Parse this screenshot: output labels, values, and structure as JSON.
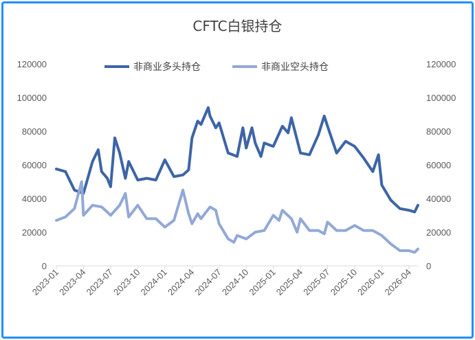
{
  "chart_data": {
    "type": "line",
    "title": "CFTC白银持仓",
    "y_left": {
      "ylim": [
        0,
        120000
      ],
      "ticks": [
        "0",
        "20000",
        "40000",
        "60000",
        "80000",
        "100000",
        "120000"
      ]
    },
    "y_right": {
      "ylim": [
        0,
        120000
      ],
      "ticks": [
        "0",
        "20000",
        "40000",
        "60000",
        "80000",
        "100000",
        "120000"
      ]
    },
    "x_ticks": [
      "2023-01",
      "2023-04",
      "2023-07",
      "2023-10",
      "2024-01",
      "2024-04",
      "2024-07",
      "2024-10",
      "2025-01",
      "2025-04",
      "2025-07",
      "2025-10",
      "2026-01",
      "2026-04"
    ],
    "x_range": [
      "2023-01",
      "2026-05"
    ],
    "legend": {
      "position": "top"
    },
    "grid": false,
    "series": [
      {
        "name": "非商业多头持仓",
        "color": "#3d65a6",
        "points": [
          [
            "2023-01",
            57500
          ],
          [
            "2023-02",
            56000
          ],
          [
            "2023-03",
            45000
          ],
          [
            "2023-04",
            43000
          ],
          [
            "2023-05",
            62000
          ],
          [
            "2023-05-20",
            69000
          ],
          [
            "2023-06",
            56000
          ],
          [
            "2023-06-20",
            52000
          ],
          [
            "2023-07",
            47000
          ],
          [
            "2023-07-15",
            76000
          ],
          [
            "2023-08",
            67000
          ],
          [
            "2023-08-20",
            52000
          ],
          [
            "2023-09",
            62000
          ],
          [
            "2023-10",
            51000
          ],
          [
            "2023-11",
            52000
          ],
          [
            "2023-12",
            51000
          ],
          [
            "2024-01",
            63000
          ],
          [
            "2024-02",
            53000
          ],
          [
            "2024-03",
            54000
          ],
          [
            "2024-03-20",
            57000
          ],
          [
            "2024-04",
            76000
          ],
          [
            "2024-04-20",
            86000
          ],
          [
            "2024-05",
            84000
          ],
          [
            "2024-05-25",
            94000
          ],
          [
            "2024-06",
            89000
          ],
          [
            "2024-06-20",
            82000
          ],
          [
            "2024-07",
            85000
          ],
          [
            "2024-08",
            67000
          ],
          [
            "2024-09",
            65000
          ],
          [
            "2024-09-20",
            82000
          ],
          [
            "2024-10",
            70000
          ],
          [
            "2024-10-20",
            82000
          ],
          [
            "2024-11",
            73000
          ],
          [
            "2024-11-20",
            65000
          ],
          [
            "2024-12",
            73000
          ],
          [
            "2025-01",
            71000
          ],
          [
            "2025-02",
            83000
          ],
          [
            "2025-02-20",
            79000
          ],
          [
            "2025-03",
            88000
          ],
          [
            "2025-04",
            67000
          ],
          [
            "2025-05",
            66000
          ],
          [
            "2025-06",
            78000
          ],
          [
            "2025-06-20",
            89000
          ],
          [
            "2025-07",
            83000
          ],
          [
            "2025-08",
            67000
          ],
          [
            "2025-09",
            74000
          ],
          [
            "2025-10",
            71000
          ],
          [
            "2025-11",
            64000
          ],
          [
            "2025-12",
            56000
          ],
          [
            "2025-12-20",
            66000
          ],
          [
            "2026-01",
            48000
          ],
          [
            "2026-02",
            39000
          ],
          [
            "2026-03",
            34000
          ],
          [
            "2026-04",
            33000
          ],
          [
            "2026-04-20",
            32000
          ],
          [
            "2026-05",
            36000
          ]
        ]
      },
      {
        "name": "非商业空头持仓",
        "color": "#92a9d6",
        "points": [
          [
            "2023-01",
            27000
          ],
          [
            "2023-02",
            29000
          ],
          [
            "2023-03",
            34000
          ],
          [
            "2023-03-25",
            50000
          ],
          [
            "2023-04",
            30000
          ],
          [
            "2023-05",
            36000
          ],
          [
            "2023-06",
            35000
          ],
          [
            "2023-06-20",
            32000
          ],
          [
            "2023-07",
            30000
          ],
          [
            "2023-08",
            36000
          ],
          [
            "2023-08-20",
            43000
          ],
          [
            "2023-09",
            29000
          ],
          [
            "2023-10",
            36000
          ],
          [
            "2023-11",
            28000
          ],
          [
            "2023-12",
            28000
          ],
          [
            "2024-01",
            23000
          ],
          [
            "2024-02",
            27000
          ],
          [
            "2024-03",
            45000
          ],
          [
            "2024-03-20",
            31000
          ],
          [
            "2024-04",
            25000
          ],
          [
            "2024-04-20",
            31000
          ],
          [
            "2024-05",
            28000
          ],
          [
            "2024-06",
            35000
          ],
          [
            "2024-06-20",
            33000
          ],
          [
            "2024-07",
            25000
          ],
          [
            "2024-08",
            16000
          ],
          [
            "2024-08-20",
            14000
          ],
          [
            "2024-09",
            18000
          ],
          [
            "2024-10",
            16000
          ],
          [
            "2024-11",
            20000
          ],
          [
            "2024-12",
            21000
          ],
          [
            "2025-01",
            30000
          ],
          [
            "2025-01-20",
            27000
          ],
          [
            "2025-02",
            33000
          ],
          [
            "2025-03",
            28000
          ],
          [
            "2025-03-20",
            20000
          ],
          [
            "2025-04",
            28000
          ],
          [
            "2025-05",
            21000
          ],
          [
            "2025-06",
            21000
          ],
          [
            "2025-06-20",
            19000
          ],
          [
            "2025-07",
            26000
          ],
          [
            "2025-08",
            21000
          ],
          [
            "2025-09",
            21000
          ],
          [
            "2025-10",
            24000
          ],
          [
            "2025-11",
            21000
          ],
          [
            "2025-12",
            21000
          ],
          [
            "2026-01",
            18000
          ],
          [
            "2026-02",
            13000
          ],
          [
            "2026-03",
            9000
          ],
          [
            "2026-04",
            9000
          ],
          [
            "2026-04-20",
            8000
          ],
          [
            "2026-05",
            10000
          ]
        ]
      }
    ]
  }
}
